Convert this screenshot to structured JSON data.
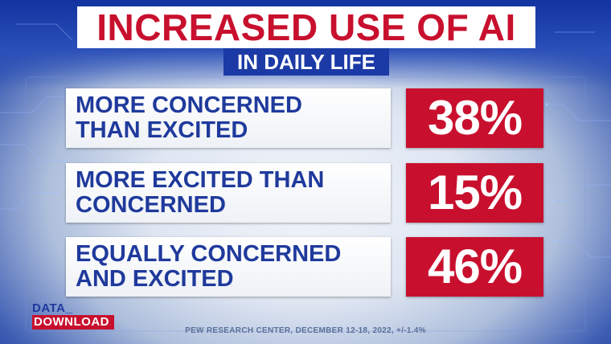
{
  "header": {
    "title": "INCREASED USE OF AI",
    "subtitle": "IN DAILY LIFE"
  },
  "rows": [
    {
      "line1": "MORE CONCERNED",
      "line2": "THAN EXCITED",
      "value_label": "38%"
    },
    {
      "line1": "MORE EXCITED THAN",
      "line2": "CONCERNED",
      "value_label": "15%"
    },
    {
      "line1": "EQUALLY CONCERNED",
      "line2": "AND EXCITED",
      "value_label": "46%"
    }
  ],
  "logo": {
    "top": "DATA_",
    "bottom": "DOWNLOAD",
    "icon": "data-download-logo"
  },
  "source": "PEW RESEARCH CENTER, DECEMBER 12-18, 2022, +/-1.4%",
  "colors": {
    "red": "#c8102e",
    "navy": "#1f3a9c",
    "background": "#1b3aa6"
  },
  "chart_data": {
    "type": "table",
    "title": "INCREASED USE OF AI",
    "subtitle": "IN DAILY LIFE",
    "categories": [
      "MORE CONCERNED THAN EXCITED",
      "MORE EXCITED THAN CONCERNED",
      "EQUALLY CONCERNED AND EXCITED"
    ],
    "values": [
      38,
      15,
      46
    ],
    "unit": "%",
    "source": "PEW RESEARCH CENTER, DECEMBER 12-18, 2022, +/-1.4%"
  }
}
